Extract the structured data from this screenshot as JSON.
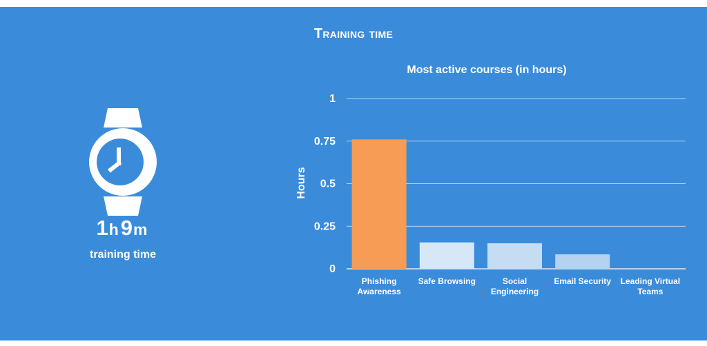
{
  "header": {
    "title": "Training time"
  },
  "summary": {
    "hours_value": "1",
    "hours_unit": "h",
    "minutes_value": "9",
    "minutes_unit": "m",
    "label": "training time",
    "icon": "watch-icon"
  },
  "colors": {
    "background": "#3a8cdb",
    "highlight_bar": "#f79c54",
    "bar_1": "#d6e8f7",
    "bar_2": "#c5dcf3",
    "bar_3": "#b6d2f1",
    "bar_4": "#a9caef"
  },
  "chart_data": {
    "type": "bar",
    "title": "Most active courses (in hours)",
    "xlabel": "",
    "ylabel": "Hours",
    "ylim": [
      0,
      1
    ],
    "yticks": [
      "0",
      "0.25",
      "0.5",
      "0.75",
      "1"
    ],
    "ytick_values": [
      0,
      0.25,
      0.5,
      0.75,
      1
    ],
    "grid": true,
    "categories": [
      [
        "Phishing",
        "Awareness"
      ],
      [
        "Safe Browsing"
      ],
      [
        "Social",
        "Engineering"
      ],
      [
        "Email Security"
      ],
      [
        "Leading Virtual",
        "Teams"
      ]
    ],
    "values": [
      0.76,
      0.155,
      0.15,
      0.085,
      0.0
    ]
  }
}
